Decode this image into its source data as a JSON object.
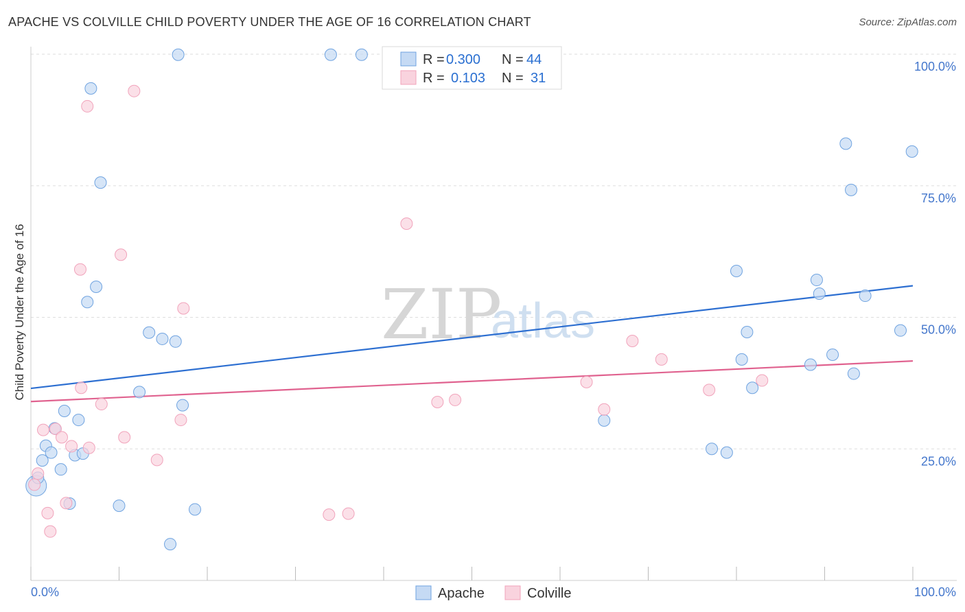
{
  "chart_data": {
    "type": "scatter",
    "title": "APACHE VS COLVILLE CHILD POVERTY UNDER THE AGE OF 16 CORRELATION CHART",
    "source": "Source: ZipAtlas.com",
    "ylabel": "Child Poverty Under the Age of 16",
    "xlim": [
      0,
      100
    ],
    "ylim": [
      0,
      100
    ],
    "x_tick_labels": [
      "0.0%",
      "100.0%"
    ],
    "y_tick_labels": [
      "25.0%",
      "50.0%",
      "75.0%",
      "100.0%"
    ],
    "y_tick_values": [
      25,
      50,
      75,
      100
    ],
    "watermark": {
      "zip": "ZIP",
      "atlas": "atlas"
    },
    "legend_stats": [
      {
        "series": "Apache",
        "r_label": "R =",
        "r_value": "0.300",
        "n_label": "N =",
        "n_value": "44"
      },
      {
        "series": "Colville",
        "r_label": "R =",
        "r_value": "0.103",
        "n_label": "N =",
        "n_value": "31"
      }
    ],
    "series": [
      {
        "name": "Apache",
        "color": "#6fa3e0",
        "fill": "#c5daf4",
        "trend": {
          "x": [
            0,
            100
          ],
          "y": [
            36.5,
            56.0
          ],
          "color": "#2d6fd1"
        },
        "points": [
          {
            "x": 0.6,
            "y": 18.0,
            "big": true
          },
          {
            "x": 0.8,
            "y": 19.5
          },
          {
            "x": 1.3,
            "y": 22.8
          },
          {
            "x": 1.7,
            "y": 25.6
          },
          {
            "x": 2.3,
            "y": 24.3
          },
          {
            "x": 2.7,
            "y": 28.9
          },
          {
            "x": 3.4,
            "y": 21.1
          },
          {
            "x": 3.8,
            "y": 32.2
          },
          {
            "x": 4.4,
            "y": 14.6
          },
          {
            "x": 5.0,
            "y": 23.8
          },
          {
            "x": 5.4,
            "y": 30.5
          },
          {
            "x": 5.9,
            "y": 24.1
          },
          {
            "x": 6.4,
            "y": 52.9
          },
          {
            "x": 6.8,
            "y": 93.5
          },
          {
            "x": 7.4,
            "y": 55.8
          },
          {
            "x": 7.9,
            "y": 75.6
          },
          {
            "x": 10.0,
            "y": 14.2
          },
          {
            "x": 12.3,
            "y": 35.8
          },
          {
            "x": 13.4,
            "y": 47.1
          },
          {
            "x": 14.9,
            "y": 45.9
          },
          {
            "x": 15.8,
            "y": 6.9
          },
          {
            "x": 16.4,
            "y": 45.4
          },
          {
            "x": 16.7,
            "y": 99.9
          },
          {
            "x": 17.2,
            "y": 33.3
          },
          {
            "x": 18.6,
            "y": 13.5
          },
          {
            "x": 34.0,
            "y": 99.9
          },
          {
            "x": 37.5,
            "y": 99.9
          },
          {
            "x": 65.0,
            "y": 30.4
          },
          {
            "x": 77.2,
            "y": 25.0
          },
          {
            "x": 78.9,
            "y": 24.3
          },
          {
            "x": 80.0,
            "y": 58.8
          },
          {
            "x": 80.6,
            "y": 42.0
          },
          {
            "x": 81.2,
            "y": 47.2
          },
          {
            "x": 81.8,
            "y": 36.6
          },
          {
            "x": 88.4,
            "y": 41.0
          },
          {
            "x": 89.1,
            "y": 57.1
          },
          {
            "x": 89.4,
            "y": 54.5
          },
          {
            "x": 90.9,
            "y": 42.9
          },
          {
            "x": 92.4,
            "y": 83.0
          },
          {
            "x": 93.3,
            "y": 39.3
          },
          {
            "x": 93.0,
            "y": 74.2
          },
          {
            "x": 94.6,
            "y": 54.1
          },
          {
            "x": 98.6,
            "y": 47.5
          },
          {
            "x": 99.9,
            "y": 81.5
          }
        ]
      },
      {
        "name": "Colville",
        "color": "#f1a3bb",
        "fill": "#f9d3de",
        "trend": {
          "x": [
            0,
            100
          ],
          "y": [
            34.0,
            41.7
          ],
          "color": "#e0628f"
        },
        "points": [
          {
            "x": 0.4,
            "y": 18.2
          },
          {
            "x": 0.8,
            "y": 20.3
          },
          {
            "x": 1.4,
            "y": 28.6
          },
          {
            "x": 1.9,
            "y": 12.8
          },
          {
            "x": 2.2,
            "y": 9.3
          },
          {
            "x": 2.8,
            "y": 28.8
          },
          {
            "x": 3.5,
            "y": 27.2
          },
          {
            "x": 4.0,
            "y": 14.7
          },
          {
            "x": 4.6,
            "y": 25.5
          },
          {
            "x": 5.7,
            "y": 36.6
          },
          {
            "x": 5.6,
            "y": 59.1
          },
          {
            "x": 6.4,
            "y": 90.1
          },
          {
            "x": 6.6,
            "y": 25.2
          },
          {
            "x": 8.0,
            "y": 33.5
          },
          {
            "x": 10.2,
            "y": 61.9
          },
          {
            "x": 10.6,
            "y": 27.2
          },
          {
            "x": 11.7,
            "y": 93.0
          },
          {
            "x": 14.3,
            "y": 22.9
          },
          {
            "x": 17.0,
            "y": 30.5
          },
          {
            "x": 17.3,
            "y": 51.7
          },
          {
            "x": 33.8,
            "y": 12.5
          },
          {
            "x": 36.0,
            "y": 12.7
          },
          {
            "x": 42.6,
            "y": 67.8
          },
          {
            "x": 46.1,
            "y": 33.9
          },
          {
            "x": 48.1,
            "y": 34.3
          },
          {
            "x": 63.0,
            "y": 37.7
          },
          {
            "x": 65.0,
            "y": 32.5
          },
          {
            "x": 68.2,
            "y": 45.5
          },
          {
            "x": 71.5,
            "y": 42.0
          },
          {
            "x": 76.9,
            "y": 36.2
          },
          {
            "x": 82.9,
            "y": 38.0
          }
        ]
      }
    ]
  }
}
